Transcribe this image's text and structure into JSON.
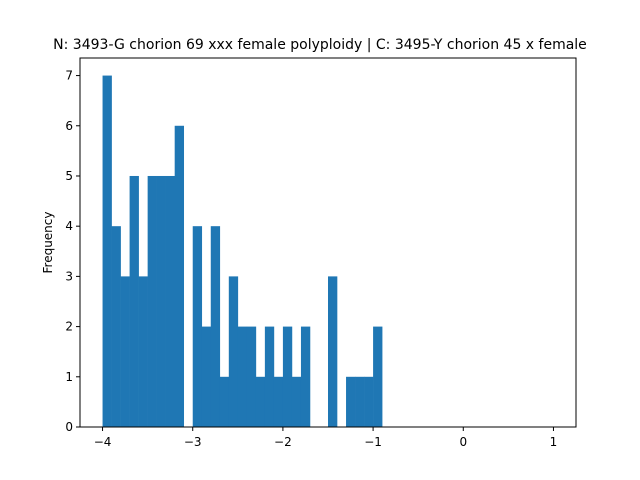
{
  "chart_data": {
    "type": "bar",
    "title": "N: 3493-G chorion 69 xxx female polyploidy | C: 3495-Y chorion 45 x female",
    "xlabel": "",
    "ylabel": "Frequency",
    "xlim": [
      -4.25,
      1.25
    ],
    "ylim": [
      0,
      7.35
    ],
    "xticks": [
      -4,
      -3,
      -2,
      -1,
      0,
      1
    ],
    "xtick_labels": [
      "−4",
      "−3",
      "−2",
      "−1",
      "0",
      "1"
    ],
    "yticks": [
      0,
      1,
      2,
      3,
      4,
      5,
      6,
      7
    ],
    "ytick_labels": [
      "0",
      "1",
      "2",
      "3",
      "4",
      "5",
      "6",
      "7"
    ],
    "bin_start": -4.0,
    "bin_width": 0.1,
    "values": [
      7,
      4,
      3,
      5,
      3,
      5,
      5,
      5,
      6,
      0,
      4,
      2,
      4,
      1,
      3,
      2,
      2,
      1,
      2,
      1,
      2,
      1,
      2,
      0,
      0,
      3,
      0,
      1,
      1,
      1,
      2,
      0,
      0,
      0,
      0,
      0,
      0,
      0,
      0,
      0,
      0,
      0,
      0,
      0,
      0,
      0,
      0,
      0,
      0,
      0
    ],
    "bar_color": "#1f77b4",
    "grid": false,
    "legend": false
  }
}
